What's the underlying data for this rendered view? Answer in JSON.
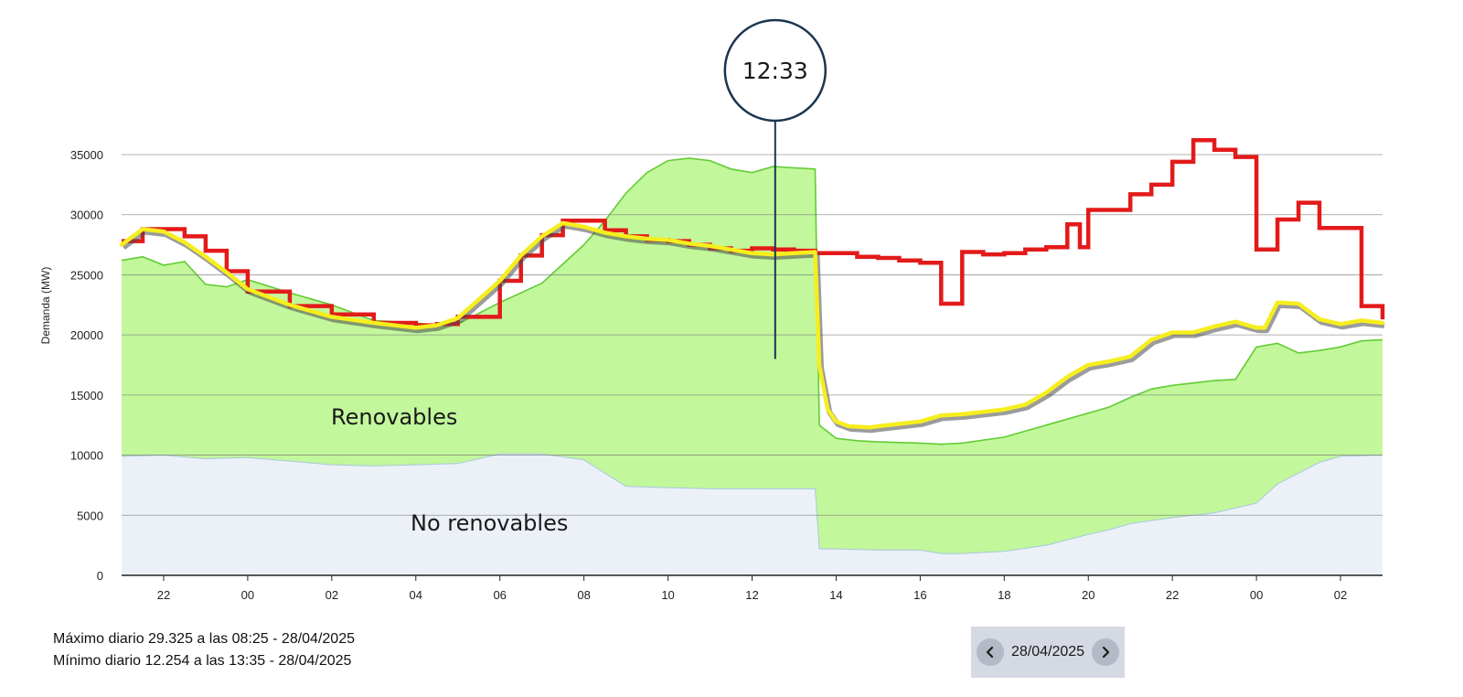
{
  "chart_data": {
    "type": "area",
    "title": "",
    "xlabel": "",
    "ylabel": "Demanda (MW)",
    "ylim": [
      0,
      35000
    ],
    "yticks": [
      0,
      5000,
      10000,
      15000,
      20000,
      25000,
      30000,
      35000
    ],
    "xticks": [
      "22",
      "00",
      "02",
      "04",
      "06",
      "08",
      "10",
      "12",
      "14",
      "16",
      "18",
      "20",
      "22",
      "00",
      "02"
    ],
    "x_start_hour": 21,
    "x_end_hour": 51,
    "grid": true,
    "colors": {
      "renovables": "#c2f79b",
      "renovables_line": "#62cc34",
      "no_renovables": "#ecf1f8",
      "prevista": "#e31a1a",
      "real": "#f6ee1d",
      "shadow": "#4a4a4a",
      "marker": "#1b3550"
    },
    "series": [
      {
        "name": "",
        "kind": "real",
        "x": [
          21.0,
          21.5,
          22.0,
          22.5,
          23.0,
          23.5,
          24.0,
          25.0,
          26.0,
          27.0,
          28.0,
          28.5,
          29.0,
          30.0,
          30.5,
          31.0,
          31.5,
          32.0,
          32.5,
          33.0,
          33.5,
          34.0,
          34.5,
          35.0,
          35.5,
          36.0,
          36.5,
          37.0,
          37.5,
          37.6,
          37.8,
          38.0,
          38.3,
          38.8,
          39.0,
          40.0,
          40.5,
          41.0,
          41.5,
          42.0,
          42.5,
          43.0,
          43.5,
          44.0,
          44.5,
          45.0,
          45.5,
          46.0,
          46.5,
          47.0,
          47.5,
          48.0,
          48.2,
          48.5,
          49.0,
          49.5,
          50.0,
          50.5,
          51.0
        ],
        "y": [
          27500,
          28800,
          28600,
          27700,
          26500,
          25200,
          23800,
          22500,
          21500,
          21000,
          20600,
          20800,
          21400,
          24500,
          26600,
          28200,
          29300,
          29000,
          28500,
          28200,
          28000,
          27900,
          27600,
          27400,
          27100,
          26800,
          26700,
          26800,
          26900,
          17500,
          13800,
          12800,
          12400,
          12300,
          12400,
          12800,
          13300,
          13400,
          13600,
          13800,
          14200,
          15200,
          16500,
          17500,
          17800,
          18200,
          19600,
          20200,
          20200,
          20700,
          21100,
          20600,
          20600,
          22700,
          22600,
          21300,
          20900,
          21200,
          21000
        ]
      },
      {
        "name": "",
        "kind": "prevista",
        "x": [
          21.0,
          21.5,
          22.0,
          22.5,
          23.0,
          23.5,
          24.0,
          25.0,
          26.0,
          27.0,
          28.0,
          28.5,
          29.0,
          30.0,
          30.5,
          31.0,
          31.5,
          32.0,
          32.5,
          33.0,
          33.5,
          34.0,
          34.5,
          35.0,
          35.5,
          36.0,
          36.5,
          37.0,
          37.5,
          38.0,
          38.5,
          39.0,
          39.5,
          40.0,
          40.5,
          40.8,
          41.0,
          41.5,
          42.0,
          42.5,
          43.0,
          43.5,
          43.8,
          44.0,
          44.5,
          45.0,
          45.5,
          46.0,
          46.5,
          47.0,
          47.5,
          48.0,
          48.5,
          49.0,
          49.5,
          50.0,
          50.5,
          51.0
        ],
        "y": [
          27800,
          28800,
          28800,
          28200,
          27000,
          25300,
          23600,
          22400,
          21700,
          21000,
          20800,
          20900,
          21500,
          24500,
          26600,
          28300,
          29500,
          29500,
          28700,
          28200,
          27900,
          27800,
          27500,
          27200,
          27000,
          27200,
          27100,
          27000,
          26800,
          26800,
          26500,
          26400,
          26200,
          26000,
          22600,
          22600,
          26900,
          26700,
          26800,
          27100,
          27300,
          29200,
          27300,
          30400,
          30400,
          31700,
          32500,
          34400,
          36200,
          35400,
          34800,
          27100,
          29600,
          31000,
          28900,
          28900,
          22400,
          21300
        ]
      },
      {
        "name": "Renovables",
        "kind": "renovables",
        "x": [
          21.0,
          21.5,
          22.0,
          22.5,
          23.0,
          23.5,
          24.0,
          25.0,
          26.0,
          27.0,
          28.0,
          28.5,
          29.0,
          30.0,
          31.0,
          32.0,
          32.5,
          33.0,
          33.5,
          34.0,
          34.5,
          35.0,
          35.5,
          36.0,
          36.5,
          37.0,
          37.5,
          37.6,
          38.0,
          38.5,
          39.0,
          40.0,
          40.5,
          41.0,
          42.0,
          43.0,
          44.0,
          44.5,
          45.0,
          45.5,
          46.0,
          46.5,
          47.0,
          47.5,
          48.0,
          48.5,
          49.0,
          49.5,
          50.0,
          50.5,
          51.0
        ],
        "y": [
          26200,
          26500,
          25800,
          26100,
          24200,
          24000,
          24600,
          23500,
          22500,
          21200,
          21000,
          20800,
          20900,
          22700,
          24300,
          27500,
          29500,
          31800,
          33500,
          34500,
          34700,
          34500,
          33800,
          33500,
          34000,
          33900,
          33800,
          12500,
          11400,
          11200,
          11100,
          11000,
          10900,
          11000,
          11500,
          12500,
          13500,
          14000,
          14800,
          15500,
          15800,
          16000,
          16200,
          16300,
          19000,
          19300,
          18500,
          18700,
          19000,
          19500,
          19600
        ]
      },
      {
        "name": "No renovables",
        "kind": "no_renovables",
        "x": [
          21.0,
          22.0,
          23.0,
          24.0,
          25.0,
          26.0,
          27.0,
          28.0,
          29.0,
          30.0,
          31.0,
          32.0,
          32.5,
          33.0,
          34.0,
          35.0,
          36.0,
          37.0,
          37.5,
          37.6,
          38.0,
          39.0,
          40.0,
          40.5,
          41.0,
          42.0,
          43.0,
          44.0,
          44.5,
          45.0,
          46.0,
          47.0,
          47.5,
          48.0,
          48.5,
          49.0,
          49.5,
          50.0,
          51.0
        ],
        "y": [
          9900,
          10000,
          9700,
          9800,
          9500,
          9200,
          9100,
          9200,
          9300,
          10100,
          10100,
          9600,
          8500,
          7400,
          7300,
          7200,
          7200,
          7200,
          7200,
          2200,
          2200,
          2100,
          2100,
          1800,
          1800,
          2000,
          2500,
          3400,
          3800,
          4300,
          4800,
          5200,
          5600,
          6000,
          7600,
          8500,
          9400,
          9900,
          10000
        ]
      }
    ],
    "marker": {
      "label": "12:33",
      "x_hour": 36.55
    },
    "area_labels": {
      "renovables": "Renovables",
      "no_renovables": "No renovables"
    }
  },
  "stats": {
    "max": "Máximo diario 29.325 a las 08:25 - 28/04/2025",
    "min": "Mínimo diario 12.254 a las 13:35 - 28/04/2025"
  },
  "date_nav": {
    "date": "28/04/2025",
    "prev_icon": "chevron-left-icon",
    "next_icon": "chevron-right-icon"
  }
}
